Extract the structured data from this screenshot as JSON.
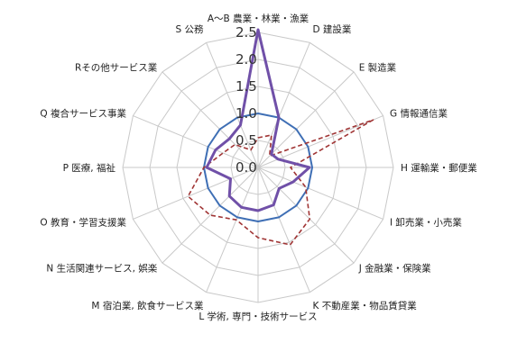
{
  "chart_data": {
    "type": "radar",
    "categories": [
      "A～B 農業・林業・漁業",
      "D 建設業",
      "E 製造業",
      "G 情報通信業",
      "H 運輸業・郵便業",
      "I 卸売業・小売業",
      "J 金融業・保険業",
      "K 不動産業・物品賃貸業",
      "L 学術, 専門・技術サービス",
      "M 宿泊業, 飲食サービス業",
      "N 生活関連サービス, 娯楽",
      "O 教育・学習支援業",
      "P 医療, 福祉",
      "Q 複合サービス事業",
      "Rその他サービス業",
      "S 公務"
    ],
    "rlim": [
      0,
      2.5
    ],
    "ticks": [
      "0.0",
      "0.5",
      "1.0",
      "1.5",
      "2.0",
      "2.5"
    ],
    "grid": true,
    "series": [
      {
        "color": "#3f6fb5",
        "style": "solid",
        "width": 2,
        "values": [
          1.0,
          1.0,
          1.0,
          1.0,
          1.0,
          1.0,
          1.0,
          1.0,
          1.0,
          1.0,
          1.0,
          1.0,
          1.0,
          1.0,
          1.0,
          1.0
        ]
      },
      {
        "color": "#a03535",
        "style": "dashed",
        "width": 1.6,
        "values": [
          0.55,
          0.65,
          0.3,
          2.3,
          0.6,
          0.95,
          1.35,
          1.55,
          1.3,
          1.05,
          1.25,
          1.4,
          1.0,
          0.7,
          0.6,
          0.35
        ]
      },
      {
        "color": "#7050a8",
        "style": "solid",
        "width": 3,
        "values": [
          2.55,
          1.0,
          0.35,
          0.4,
          0.95,
          0.7,
          0.55,
          0.75,
          0.8,
          0.8,
          0.75,
          0.55,
          0.95,
          0.85,
          0.75,
          0.85
        ]
      }
    ]
  }
}
